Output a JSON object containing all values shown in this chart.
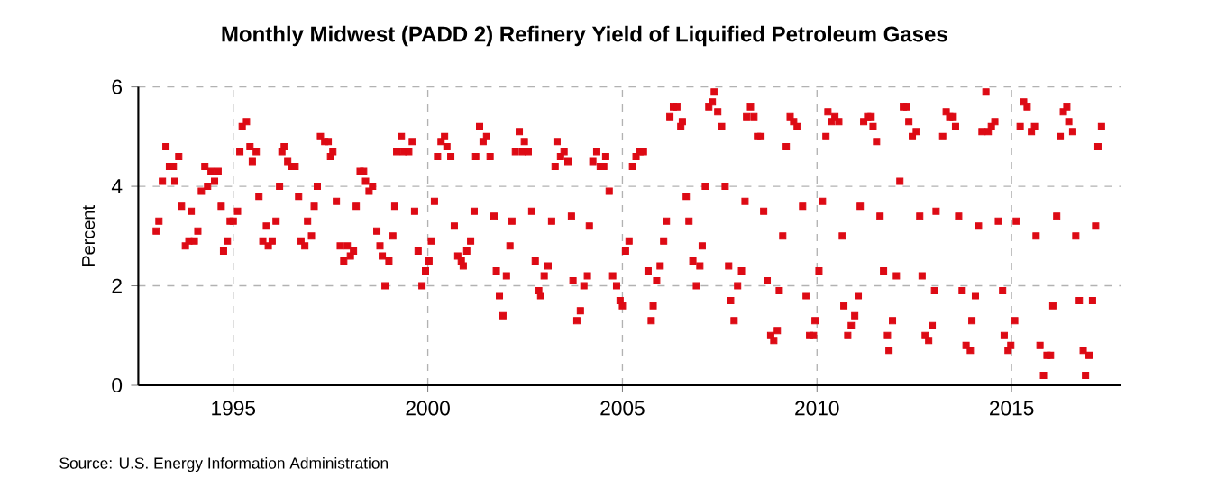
{
  "chart_data": {
    "type": "scatter",
    "title": "Monthly Midwest (PADD 2) Refinery Yield of Liquified Petroleum Gases",
    "ylabel": "Percent",
    "annotations": [
      "Source: U.S. Energy Information Administration"
    ],
    "xlim": [
      1992.56,
      2017.81
    ],
    "xticks": [
      1995,
      2000,
      2005,
      2010,
      2015
    ],
    "ylim": [
      0,
      6
    ],
    "yticks": [
      0,
      2,
      4,
      6
    ],
    "grid": true,
    "marker": "square",
    "color": "#dd0a14",
    "x": [
      1993.02,
      1993.09,
      1993.18,
      1993.27,
      1993.36,
      1993.46,
      1993.5,
      1993.6,
      1993.67,
      1993.77,
      1993.86,
      1993.92,
      1994.0,
      1994.09,
      1994.18,
      1994.27,
      1994.34,
      1994.43,
      1994.52,
      1994.61,
      1994.69,
      1994.75,
      1994.85,
      1994.92,
      1995.0,
      1995.11,
      1995.17,
      1995.23,
      1995.34,
      1995.43,
      1995.49,
      1995.59,
      1995.66,
      1995.76,
      1995.85,
      1995.9,
      1996.0,
      1996.1,
      1996.19,
      1996.25,
      1996.31,
      1996.4,
      1996.5,
      1996.59,
      1996.68,
      1996.74,
      1996.84,
      1996.91,
      1997.01,
      1997.08,
      1997.16,
      1997.24,
      1997.35,
      1997.44,
      1997.5,
      1997.56,
      1997.65,
      1997.75,
      1997.84,
      1997.93,
      1998.01,
      1998.09,
      1998.16,
      1998.26,
      1998.35,
      1998.4,
      1998.49,
      1998.58,
      1998.69,
      1998.77,
      1998.83,
      1998.9,
      1999.0,
      1999.1,
      1999.15,
      1999.2,
      1999.32,
      1999.38,
      1999.51,
      1999.6,
      1999.66,
      1999.75,
      1999.85,
      1999.94,
      2000.03,
      2000.09,
      2000.17,
      2000.25,
      2000.34,
      2000.43,
      2000.49,
      2000.59,
      2000.68,
      2000.77,
      2000.86,
      2000.91,
      2001.0,
      2001.1,
      2001.19,
      2001.23,
      2001.33,
      2001.42,
      2001.51,
      2001.6,
      2001.7,
      2001.76,
      2001.84,
      2001.93,
      2002.02,
      2002.11,
      2002.16,
      2002.25,
      2002.35,
      2002.44,
      2002.48,
      2002.58,
      2002.67,
      2002.76,
      2002.85,
      2002.9,
      2002.99,
      2003.09,
      2003.18,
      2003.27,
      2003.32,
      2003.41,
      2003.5,
      2003.6,
      2003.69,
      2003.73,
      2003.83,
      2003.92,
      2004.01,
      2004.1,
      2004.15,
      2004.24,
      2004.34,
      2004.43,
      2004.52,
      2004.57,
      2004.66,
      2004.75,
      2004.85,
      2004.94,
      2005.0,
      2005.08,
      2005.17,
      2005.26,
      2005.35,
      2005.45,
      2005.54,
      2005.66,
      2005.74,
      2005.79,
      2005.88,
      2005.97,
      2006.06,
      2006.13,
      2006.22,
      2006.31,
      2006.4,
      2006.5,
      2006.54,
      2006.64,
      2006.71,
      2006.81,
      2006.9,
      2006.99,
      2007.05,
      2007.13,
      2007.22,
      2007.31,
      2007.36,
      2007.45,
      2007.55,
      2007.64,
      2007.73,
      2007.78,
      2007.87,
      2007.96,
      2008.06,
      2008.15,
      2008.19,
      2008.29,
      2008.38,
      2008.47,
      2008.56,
      2008.63,
      2008.72,
      2008.81,
      2008.89,
      2008.98,
      2009.03,
      2009.12,
      2009.21,
      2009.31,
      2009.4,
      2009.49,
      2009.63,
      2009.72,
      2009.81,
      2009.91,
      2009.95,
      2010.05,
      2010.14,
      2010.23,
      2010.28,
      2010.37,
      2010.46,
      2010.56,
      2010.65,
      2010.69,
      2010.79,
      2010.88,
      2010.97,
      2011.06,
      2011.11,
      2011.2,
      2011.3,
      2011.39,
      2011.44,
      2011.53,
      2011.62,
      2011.71,
      2011.81,
      2011.85,
      2011.94,
      2012.04,
      2012.13,
      2012.22,
      2012.31,
      2012.36,
      2012.45,
      2012.55,
      2012.64,
      2012.7,
      2012.78,
      2012.87,
      2012.96,
      2013.02,
      2013.06,
      2013.23,
      2013.32,
      2013.41,
      2013.5,
      2013.56,
      2013.64,
      2013.73,
      2013.83,
      2013.94,
      2013.98,
      2014.07,
      2014.15,
      2014.24,
      2014.34,
      2014.4,
      2014.48,
      2014.57,
      2014.66,
      2014.77,
      2014.81,
      2014.91,
      2014.98,
      2015.08,
      2015.12,
      2015.22,
      2015.31,
      2015.4,
      2015.51,
      2015.59,
      2015.63,
      2015.73,
      2015.82,
      2015.91,
      2016.0,
      2016.06,
      2016.16,
      2016.25,
      2016.33,
      2016.42,
      2016.47,
      2016.57,
      2016.65,
      2016.74,
      2016.84,
      2016.9,
      2016.99,
      2017.08,
      2017.16,
      2017.22,
      2017.31
    ],
    "values": [
      3.1,
      3.3,
      4.1,
      4.8,
      4.4,
      4.4,
      4.1,
      4.6,
      3.6,
      2.8,
      2.9,
      3.5,
      2.9,
      3.1,
      3.9,
      4.4,
      4.0,
      4.3,
      4.1,
      4.3,
      3.6,
      2.7,
      2.9,
      3.3,
      3.3,
      3.5,
      4.7,
      5.2,
      5.3,
      4.8,
      4.5,
      4.7,
      3.8,
      2.9,
      3.2,
      2.8,
      2.9,
      3.3,
      4.0,
      4.7,
      4.8,
      4.5,
      4.4,
      4.4,
      3.8,
      2.9,
      2.8,
      3.3,
      3.0,
      3.6,
      4.0,
      5.0,
      4.9,
      4.9,
      4.6,
      4.7,
      3.7,
      2.8,
      2.5,
      2.8,
      2.6,
      2.7,
      3.6,
      4.3,
      4.3,
      4.1,
      3.9,
      4.0,
      3.1,
      2.8,
      2.6,
      2.0,
      2.5,
      3.0,
      3.6,
      4.7,
      5.0,
      4.7,
      4.7,
      4.9,
      3.5,
      2.7,
      2.0,
      2.3,
      2.5,
      2.9,
      3.7,
      4.6,
      4.9,
      5.0,
      4.8,
      4.6,
      3.2,
      2.6,
      2.5,
      2.4,
      2.7,
      2.9,
      3.5,
      4.6,
      5.2,
      4.9,
      5.0,
      4.6,
      3.4,
      2.3,
      1.8,
      1.4,
      2.2,
      2.8,
      3.3,
      4.7,
      5.1,
      4.7,
      4.9,
      4.7,
      3.5,
      2.5,
      1.9,
      1.8,
      2.2,
      2.4,
      3.3,
      4.4,
      4.9,
      4.6,
      4.7,
      4.5,
      3.4,
      2.1,
      1.3,
      1.5,
      2.0,
      2.2,
      3.2,
      4.5,
      4.7,
      4.4,
      4.4,
      4.6,
      3.9,
      2.2,
      2.0,
      1.7,
      1.6,
      2.7,
      2.9,
      4.4,
      4.6,
      4.7,
      4.7,
      2.3,
      1.3,
      1.6,
      2.1,
      2.4,
      2.9,
      3.3,
      5.4,
      5.6,
      5.6,
      5.2,
      5.3,
      3.8,
      3.3,
      2.5,
      2.0,
      2.4,
      2.8,
      4.0,
      5.6,
      5.7,
      5.9,
      5.5,
      5.2,
      4.0,
      2.4,
      1.7,
      1.3,
      2.0,
      2.3,
      3.7,
      5.4,
      5.6,
      5.4,
      5.0,
      5.0,
      3.5,
      2.1,
      1.0,
      0.9,
      1.1,
      1.9,
      3.0,
      4.8,
      5.4,
      5.3,
      5.2,
      3.6,
      1.8,
      1.0,
      1.0,
      1.3,
      2.3,
      3.7,
      5.0,
      5.5,
      5.3,
      5.4,
      5.3,
      3.0,
      1.6,
      1.0,
      1.2,
      1.4,
      1.8,
      3.6,
      5.3,
      5.4,
      5.4,
      5.2,
      4.9,
      3.4,
      2.3,
      1.0,
      0.7,
      1.3,
      2.2,
      4.1,
      5.6,
      5.6,
      5.3,
      5.0,
      5.1,
      3.4,
      2.2,
      1.0,
      0.9,
      1.2,
      1.9,
      3.5,
      5.0,
      5.5,
      5.4,
      5.4,
      5.2,
      3.4,
      1.9,
      0.8,
      0.7,
      1.3,
      1.8,
      3.2,
      5.1,
      5.9,
      5.1,
      5.2,
      5.3,
      3.3,
      1.9,
      1.0,
      0.7,
      0.8,
      1.3,
      3.3,
      5.2,
      5.7,
      5.6,
      5.1,
      5.2,
      3.0,
      0.8,
      0.2,
      0.6,
      0.6,
      1.6,
      3.4,
      5.0,
      5.5,
      5.6,
      5.3,
      5.1,
      3.0,
      1.7,
      0.7,
      0.2,
      0.6,
      1.7,
      3.2,
      4.8,
      5.2
    ]
  }
}
